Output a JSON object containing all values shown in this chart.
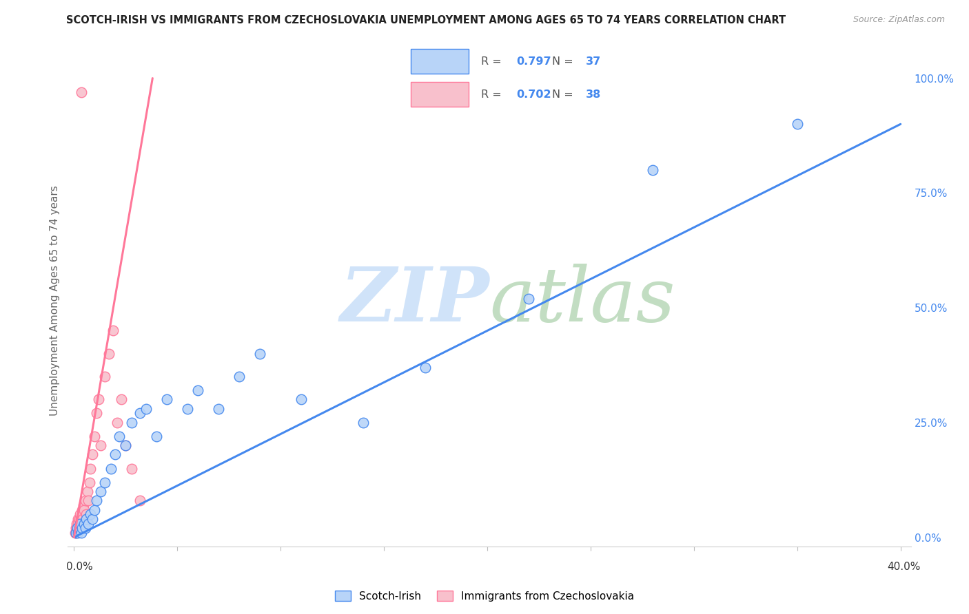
{
  "title": "SCOTCH-IRISH VS IMMIGRANTS FROM CZECHOSLOVAKIA UNEMPLOYMENT AMONG AGES 65 TO 74 YEARS CORRELATION CHART",
  "source": "Source: ZipAtlas.com",
  "ylabel": "Unemployment Among Ages 65 to 74 years",
  "right_yticks": [
    "0.0%",
    "25.0%",
    "50.0%",
    "75.0%",
    "100.0%"
  ],
  "right_ytick_vals": [
    0,
    25,
    50,
    75,
    100
  ],
  "xmin": 0,
  "xmax": 40,
  "ymin": 0,
  "ymax": 100,
  "series1_name": "Scotch-Irish",
  "series1_R": "0.797",
  "series1_N": "37",
  "series1_color": "#b8d4f8",
  "series1_line_color": "#4488ee",
  "series2_name": "Immigrants from Czechoslovakia",
  "series2_R": "0.702",
  "series2_N": "38",
  "series2_color": "#f8c0cc",
  "series2_line_color": "#ff7799",
  "watermark": "ZIPatlas",
  "watermark_color": "#cce0f8",
  "scotch_irish_x": [
    0.1,
    0.15,
    0.2,
    0.25,
    0.3,
    0.35,
    0.4,
    0.5,
    0.55,
    0.6,
    0.7,
    0.8,
    0.9,
    1.0,
    1.1,
    1.3,
    1.5,
    1.8,
    2.0,
    2.2,
    2.5,
    2.8,
    3.2,
    3.5,
    4.0,
    4.5,
    5.5,
    6.0,
    7.0,
    8.0,
    9.0,
    11.0,
    14.0,
    17.0,
    22.0,
    28.0,
    35.0
  ],
  "scotch_irish_y": [
    1,
    2,
    1,
    2,
    3,
    1,
    2,
    3,
    2,
    4,
    3,
    5,
    4,
    6,
    8,
    10,
    12,
    15,
    18,
    22,
    20,
    25,
    27,
    28,
    22,
    30,
    28,
    32,
    28,
    35,
    40,
    30,
    25,
    37,
    52,
    80,
    90
  ],
  "czech_x": [
    0.05,
    0.08,
    0.1,
    0.12,
    0.15,
    0.18,
    0.2,
    0.22,
    0.25,
    0.28,
    0.3,
    0.32,
    0.35,
    0.38,
    0.4,
    0.42,
    0.45,
    0.5,
    0.55,
    0.6,
    0.65,
    0.7,
    0.75,
    0.8,
    0.9,
    1.0,
    1.1,
    1.2,
    1.3,
    1.5,
    1.7,
    1.9,
    2.1,
    2.3,
    2.5,
    2.8,
    3.2,
    0.35
  ],
  "czech_y": [
    1,
    2,
    1,
    3,
    2,
    4,
    3,
    2,
    4,
    3,
    5,
    4,
    3,
    6,
    5,
    4,
    7,
    6,
    8,
    5,
    10,
    8,
    12,
    15,
    18,
    22,
    27,
    30,
    20,
    35,
    40,
    45,
    25,
    30,
    20,
    15,
    8,
    97
  ],
  "blue_line_x": [
    0,
    40
  ],
  "blue_line_y": [
    0,
    90
  ],
  "pink_line_x": [
    0,
    3.8
  ],
  "pink_line_y": [
    0,
    100
  ]
}
